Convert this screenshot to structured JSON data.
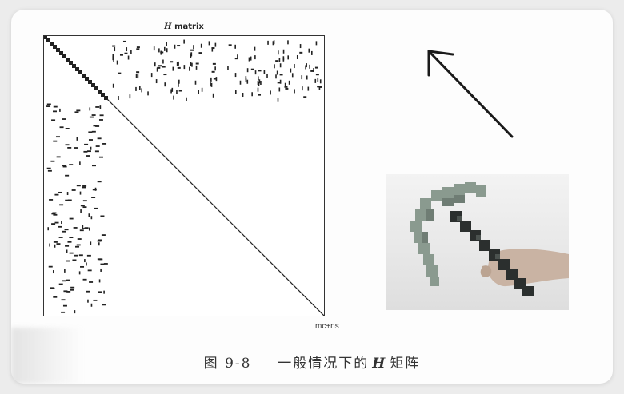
{
  "figure": {
    "plot_title_symbol": "H",
    "plot_title_text": "matrix",
    "x_axis_label": "mc+ns",
    "caption_label": "图 9-8",
    "caption_pre": "一般情况下的",
    "caption_symbol": "H",
    "caption_post": "矩阵"
  },
  "chart_data": {
    "type": "heatmap",
    "title": "H matrix",
    "xlabel": "mc+ns",
    "ylabel": "",
    "structure": "sparse spy plot: dense block diagonal in top-left region, scattered off-diagonal entries in top-right and bottom-left blocks, main diagonal continuing to bottom-right"
  },
  "colors": {
    "card_bg": "#fdfdfd",
    "ink": "#222222",
    "pick_light": "#8a9a8f",
    "pick_dark": "#2b2f2e",
    "hand": "#c9b3a3"
  },
  "icons": {
    "arrow": "arrow-up-left-icon",
    "photo": "minecraft-pickaxe-photo"
  }
}
